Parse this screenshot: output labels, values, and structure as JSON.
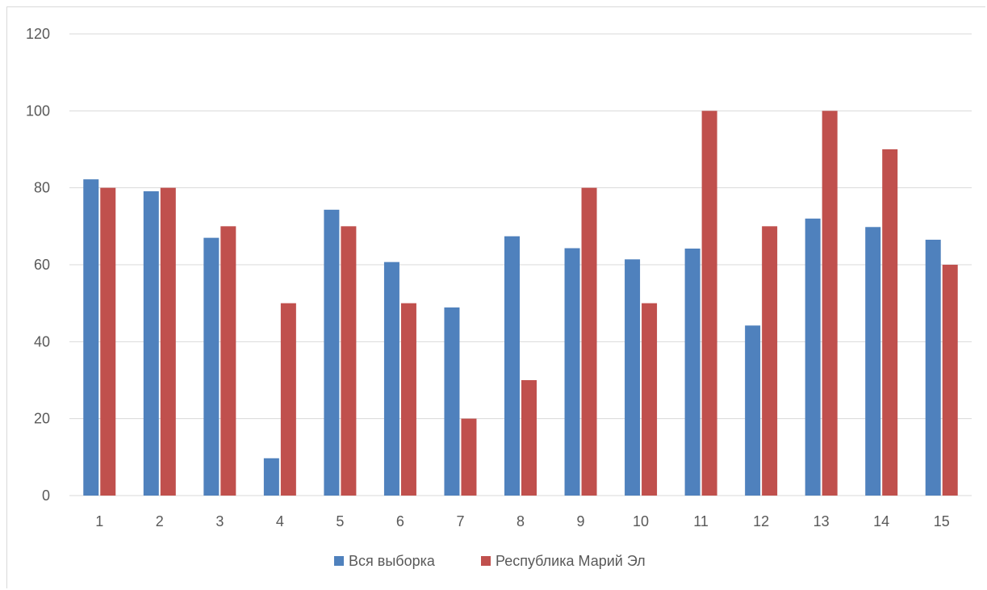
{
  "chart_data": {
    "type": "bar",
    "categories": [
      "1",
      "2",
      "3",
      "4",
      "5",
      "6",
      "7",
      "8",
      "9",
      "10",
      "11",
      "12",
      "13",
      "14",
      "15"
    ],
    "series": [
      {
        "name": "Вся выборка",
        "color": "#4f81bd",
        "values": [
          82.2,
          79.1,
          67.0,
          9.7,
          74.3,
          60.7,
          48.9,
          67.4,
          64.3,
          61.4,
          64.2,
          44.2,
          72.0,
          69.8,
          66.5
        ]
      },
      {
        "name": "Республика Марий Эл",
        "color": "#c0504d",
        "values": [
          80,
          80,
          70,
          50,
          70,
          50,
          20,
          30,
          80,
          50,
          100,
          70,
          100,
          90,
          60
        ]
      }
    ],
    "yticks": [
      "0",
      "20",
      "40",
      "60",
      "80",
      "100",
      "120"
    ],
    "ylim": [
      0,
      120
    ],
    "grid": true,
    "legend_position": "bottom",
    "title": "",
    "xlabel": "",
    "ylabel": ""
  }
}
